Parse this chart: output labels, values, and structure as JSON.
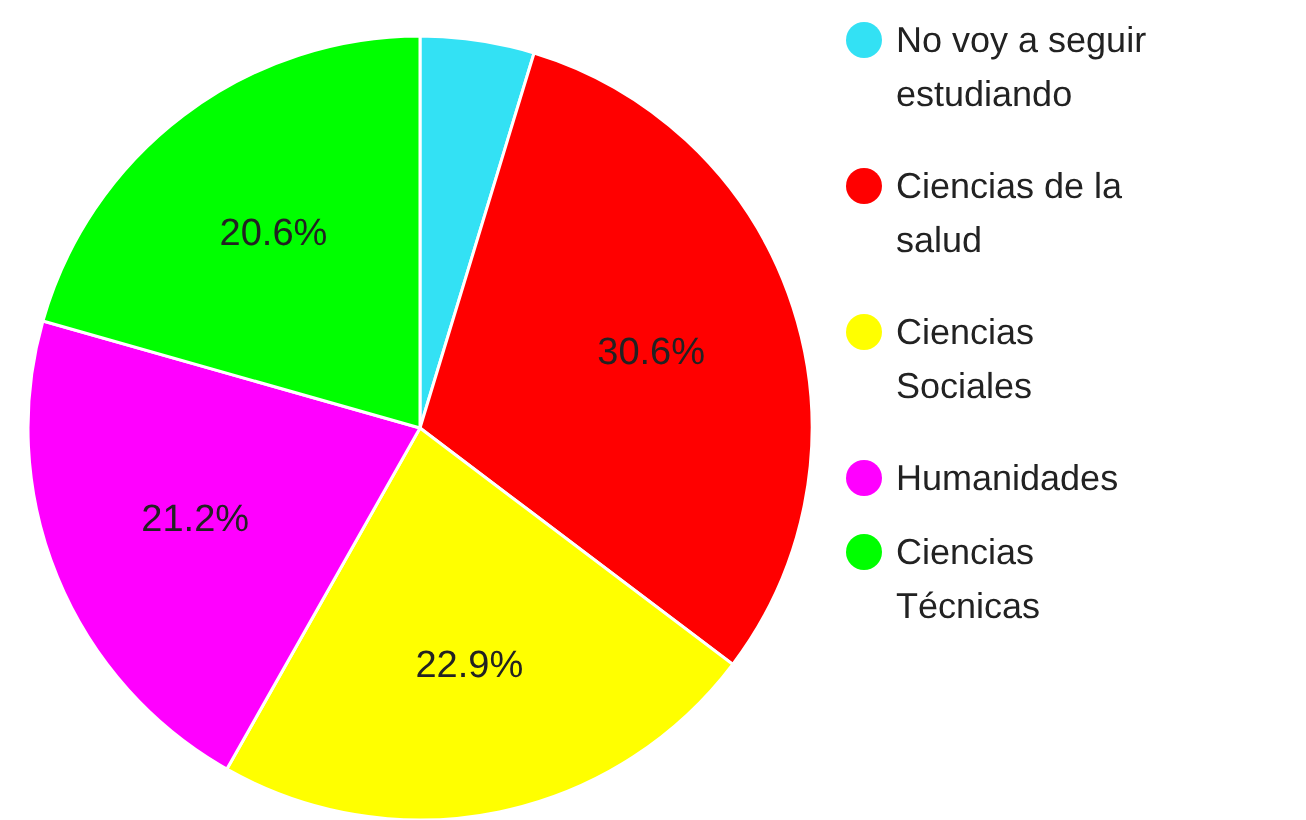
{
  "chart_data": {
    "type": "pie",
    "categories": [
      "No voy a seguir estudiando",
      "Ciencias de la salud",
      "Ciencias Sociales",
      "Humanidades",
      "Ciencias Técnicas"
    ],
    "values": [
      4.7,
      30.6,
      22.9,
      21.2,
      20.6
    ],
    "value_labels": [
      null,
      "30.6%",
      "22.9%",
      "21.2%",
      "20.6%"
    ],
    "colors": [
      "#33e1f4",
      "#ff0000",
      "#ffff00",
      "#ff00ff",
      "#00ff00"
    ],
    "legend": "right"
  }
}
